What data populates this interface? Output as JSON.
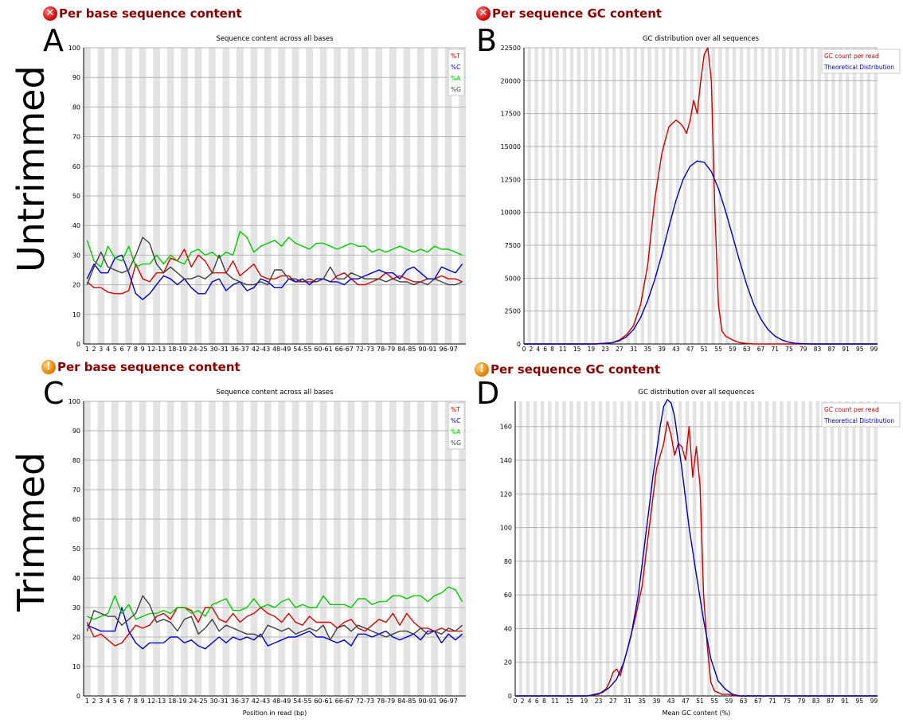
{
  "rows": [
    "Untrimmed",
    "Trimmed"
  ],
  "panels": [
    {
      "letter": "A",
      "heading": "Per base sequence content",
      "status": "fail",
      "chart_title": "Sequence content across all bases",
      "xlabel": ""
    },
    {
      "letter": "B",
      "heading": "Per sequence GC content",
      "status": "fail",
      "chart_title": "GC distribution over all sequences",
      "xlabel": ""
    },
    {
      "letter": "C",
      "heading": "Per base sequence content",
      "status": "warn",
      "chart_title": "Sequence content across all bases",
      "xlabel": "Position in read (bp)"
    },
    {
      "letter": "D",
      "heading": "Per sequence GC content",
      "status": "warn",
      "chart_title": "GC distribution over all sequences",
      "xlabel": "Mean GC content (%)"
    }
  ],
  "colors": {
    "T": "#dd0000",
    "C": "#0000cc",
    "A": "#00cc00",
    "G": "#404040",
    "gc": "#cc0000",
    "theory": "#0000bb",
    "heading": "#8b0000"
  },
  "chart_data": [
    {
      "id": "A",
      "type": "line",
      "title": "Sequence content across all bases",
      "xlabel": "",
      "ylim": [
        0,
        100
      ],
      "yticks": [
        0,
        10,
        20,
        30,
        40,
        50,
        60,
        70,
        80,
        90,
        100
      ],
      "categories": [
        "1",
        "2",
        "3",
        "4",
        "5",
        "6",
        "7",
        "8",
        "9",
        "10-11",
        "12-13",
        "14-15",
        "16-17",
        "18-19",
        "20-21",
        "22-23",
        "24-25",
        "26-27",
        "28-29",
        "30-31",
        "32-33",
        "34-35",
        "36-37",
        "38-39",
        "40-41",
        "42-43",
        "44-45",
        "46-47",
        "48-49",
        "50-51",
        "52-53",
        "54-55",
        "56-57",
        "58-59",
        "60-61",
        "62-63",
        "64-65",
        "66-67",
        "68-69",
        "70-71",
        "72-73",
        "74-75",
        "76-77",
        "78-79",
        "80-81",
        "82-83",
        "84-85",
        "86-87",
        "88-89",
        "90-91",
        "92-93",
        "94-95",
        "96-97",
        "98-99",
        "100"
      ],
      "tick_labels": [
        "1",
        "2",
        "3",
        "4",
        "5",
        "6",
        "7",
        "8",
        "9",
        "12-13",
        "18-19",
        "24-25",
        "30-31",
        "36-37",
        "42-43",
        "48-49",
        "54-55",
        "60-61",
        "66-67",
        "72-73",
        "78-79",
        "84-85",
        "90-91",
        "96-97"
      ],
      "legend": [
        "%T",
        "%C",
        "%A",
        "%G"
      ],
      "series": [
        {
          "name": "%T",
          "color": "#dd0000",
          "values": [
            21,
            19,
            19,
            17.5,
            17,
            17,
            18,
            27,
            22,
            21,
            24,
            24,
            29,
            28,
            32,
            26,
            30,
            28,
            24,
            24,
            24,
            28,
            23,
            25,
            27,
            23,
            22,
            22,
            23,
            23,
            21,
            21,
            21,
            21,
            22,
            21,
            23,
            24,
            22,
            20,
            20,
            21,
            22,
            24,
            22,
            23,
            22,
            21,
            21,
            22,
            22,
            23,
            22,
            22,
            21
          ]
        },
        {
          "name": "%C",
          "color": "#0000cc",
          "values": [
            22,
            27,
            24,
            24,
            29,
            30,
            24,
            17,
            15,
            17,
            20,
            23,
            22,
            20,
            22,
            19,
            17,
            17,
            21,
            22,
            18,
            20,
            21,
            18,
            19,
            22,
            21,
            19,
            19,
            22,
            21,
            22,
            20,
            22,
            22,
            21,
            21,
            20,
            22,
            22,
            23,
            24,
            25,
            24,
            24,
            22,
            25,
            26,
            24,
            22,
            22,
            26,
            25,
            24,
            27
          ]
        },
        {
          "name": "%A",
          "color": "#00cc00",
          "values": [
            35,
            28,
            26,
            33,
            29,
            28,
            33,
            26,
            27,
            27,
            30,
            27,
            30,
            28,
            27,
            31,
            32,
            30,
            31,
            29,
            31,
            30,
            38,
            36,
            31,
            33,
            34,
            35,
            33,
            36,
            34,
            33,
            32,
            34,
            34,
            33,
            32,
            33,
            34,
            33,
            33,
            31,
            32,
            31,
            32,
            33,
            32,
            31,
            32,
            31,
            33,
            32,
            32,
            31,
            30
          ]
        },
        {
          "name": "%G",
          "color": "#404040",
          "values": [
            20,
            26,
            31,
            26,
            25,
            24,
            25,
            30,
            36,
            34,
            27,
            24,
            26,
            24,
            22,
            22,
            23,
            22,
            24,
            30,
            24,
            22,
            21,
            20,
            20,
            21,
            20,
            25,
            25,
            22,
            22,
            21,
            22,
            21,
            22,
            26,
            22,
            22,
            24,
            23,
            22,
            22,
            22,
            21,
            22,
            21,
            21,
            20,
            21,
            20,
            22,
            21,
            20,
            20,
            21
          ]
        }
      ]
    },
    {
      "id": "B",
      "type": "line",
      "title": "GC distribution over all sequences",
      "xlabel": "",
      "xlim": [
        0,
        100
      ],
      "ylim": [
        0,
        22500
      ],
      "yticks": [
        0,
        2500,
        5000,
        7500,
        10000,
        12500,
        15000,
        17500,
        20000,
        22500
      ],
      "xticks": [
        0,
        2,
        4,
        6,
        8,
        11,
        15,
        19,
        23,
        27,
        31,
        35,
        39,
        43,
        47,
        51,
        55,
        59,
        63,
        67,
        71,
        75,
        79,
        83,
        87,
        91,
        95,
        99
      ],
      "legend": [
        "GC count per read",
        "Theoretical Distribution"
      ],
      "series": [
        {
          "name": "GC count per read",
          "color": "#cc0000",
          "x": [
            0,
            20,
            25,
            27,
            29,
            31,
            33,
            35,
            37,
            39,
            41,
            43,
            44,
            45,
            46,
            47,
            48,
            49,
            50,
            51,
            52,
            53,
            54,
            55,
            56,
            57,
            59,
            61,
            63,
            65,
            100
          ],
          "values": [
            0,
            0,
            100,
            300,
            700,
            1400,
            3000,
            6000,
            11000,
            14500,
            16500,
            17000,
            16800,
            16500,
            16000,
            17000,
            18500,
            17500,
            20000,
            22000,
            22500,
            20000,
            10000,
            3000,
            1000,
            600,
            300,
            100,
            40,
            0,
            0
          ]
        },
        {
          "name": "Theoretical Distribution",
          "color": "#0000bb",
          "x": [
            0,
            20,
            23,
            25,
            27,
            29,
            31,
            33,
            35,
            37,
            39,
            41,
            43,
            45,
            47,
            49,
            51,
            53,
            55,
            57,
            59,
            61,
            63,
            65,
            67,
            69,
            71,
            73,
            75,
            77,
            79,
            81,
            100
          ],
          "values": [
            0,
            0,
            30,
            100,
            250,
            550,
            1100,
            2000,
            3300,
            4900,
            6800,
            8900,
            10900,
            12500,
            13500,
            13900,
            13800,
            13100,
            11800,
            10100,
            8200,
            6300,
            4500,
            3000,
            1900,
            1100,
            600,
            300,
            130,
            50,
            20,
            0,
            0
          ]
        }
      ]
    },
    {
      "id": "C",
      "type": "line",
      "title": "Sequence content across all bases",
      "xlabel": "Position in read (bp)",
      "ylim": [
        0,
        100
      ],
      "yticks": [
        0,
        10,
        20,
        30,
        40,
        50,
        60,
        70,
        80,
        90,
        100
      ],
      "categories": [
        "1",
        "2",
        "3",
        "4",
        "5",
        "6",
        "7",
        "8",
        "9",
        "10-11",
        "12-13",
        "14-15",
        "16-17",
        "18-19",
        "20-21",
        "22-23",
        "24-25",
        "26-27",
        "28-29",
        "30-31",
        "32-33",
        "34-35",
        "36-37",
        "38-39",
        "40-41",
        "42-43",
        "44-45",
        "46-47",
        "48-49",
        "50-51",
        "52-53",
        "54-55",
        "56-57",
        "58-59",
        "60-61",
        "62-63",
        "64-65",
        "66-67",
        "68-69",
        "70-71",
        "72-73",
        "74-75",
        "76-77",
        "78-79",
        "80-81",
        "82-83",
        "84-85",
        "86-87",
        "88-89",
        "90-91",
        "92-93",
        "94-95",
        "96-97",
        "98-99",
        "100"
      ],
      "tick_labels": [
        "1",
        "2",
        "3",
        "4",
        "5",
        "6",
        "7",
        "8",
        "9",
        "12-13",
        "18-19",
        "24-25",
        "30-31",
        "36-37",
        "42-43",
        "48-49",
        "54-55",
        "60-61",
        "66-67",
        "72-73",
        "78-79",
        "84-85",
        "90-91",
        "96-97"
      ],
      "legend": [
        "%T",
        "%C",
        "%A",
        "%G"
      ],
      "series": [
        {
          "name": "%T",
          "color": "#dd0000",
          "values": [
            25,
            20,
            21,
            19,
            17,
            18,
            21,
            24,
            23,
            24,
            27,
            28,
            26,
            30,
            30,
            29,
            25,
            30,
            30,
            26,
            25,
            28,
            25,
            27,
            28,
            30,
            28,
            27,
            25,
            28,
            25,
            24,
            27,
            25,
            25,
            25,
            23,
            25,
            26,
            23,
            22,
            24,
            26,
            25,
            28,
            24,
            28,
            25,
            23,
            23,
            22,
            23,
            22,
            22,
            22
          ]
        },
        {
          "name": "%C",
          "color": "#0000cc",
          "values": [
            24,
            23,
            22,
            22,
            22,
            30,
            22,
            18,
            16,
            18,
            18,
            18,
            20,
            20,
            18,
            19,
            17,
            16,
            18,
            20,
            18,
            20,
            19,
            20,
            19,
            21,
            17,
            18,
            19,
            20,
            20,
            21,
            22,
            20,
            20,
            19,
            18,
            19,
            17,
            21,
            21,
            20,
            21,
            22,
            20,
            19,
            20,
            21,
            19,
            22,
            22,
            18,
            21,
            19,
            21
          ]
        },
        {
          "name": "%A",
          "color": "#00cc00",
          "values": [
            27,
            26,
            27,
            28,
            34,
            28,
            31,
            26,
            27,
            28,
            28,
            29,
            28,
            30,
            30,
            28,
            29,
            27,
            31,
            32,
            33,
            29,
            29,
            30,
            33,
            30,
            31,
            30,
            32,
            33,
            30,
            31,
            30,
            30,
            34,
            31,
            31,
            31,
            30,
            33,
            33,
            31,
            32,
            32,
            34,
            34,
            33,
            34,
            34,
            32,
            34,
            35,
            37,
            36,
            32
          ]
        },
        {
          "name": "%G",
          "color": "#404040",
          "values": [
            22,
            29,
            28,
            27,
            27,
            24,
            26,
            28,
            34,
            31,
            25,
            26,
            25,
            22,
            26,
            27,
            21,
            23,
            26,
            22,
            24,
            23,
            22,
            21,
            21,
            20,
            24,
            23,
            22,
            23,
            21,
            22,
            23,
            22,
            24,
            19,
            23,
            24,
            22,
            24,
            23,
            22,
            21,
            20,
            21,
            22,
            22,
            21,
            23,
            21,
            22,
            21,
            23,
            22,
            24
          ]
        }
      ]
    },
    {
      "id": "D",
      "type": "line",
      "title": "GC distribution over all sequences",
      "xlabel": "Mean GC content (%)",
      "xlim": [
        0,
        100
      ],
      "ylim": [
        0,
        175
      ],
      "yticks": [
        0,
        20,
        40,
        60,
        80,
        100,
        120,
        140,
        160
      ],
      "xticks": [
        0,
        2,
        4,
        6,
        8,
        11,
        15,
        19,
        23,
        27,
        31,
        35,
        39,
        43,
        47,
        51,
        55,
        59,
        63,
        67,
        71,
        75,
        79,
        83,
        87,
        91,
        95,
        99
      ],
      "legend": [
        "GC count per read",
        "Theoretical Distribution"
      ],
      "series": [
        {
          "name": "GC count per read",
          "color": "#cc0000",
          "x": [
            0,
            20,
            23,
            25,
            26,
            27,
            28,
            29,
            30,
            31,
            33,
            35,
            37,
            39,
            41,
            42,
            43,
            44,
            45,
            46,
            47,
            48,
            49,
            50,
            51,
            52,
            53,
            54,
            55,
            56,
            57,
            59,
            61,
            63,
            100
          ],
          "values": [
            0,
            0,
            1,
            4,
            8,
            14,
            16,
            12,
            20,
            28,
            45,
            65,
            100,
            135,
            150,
            163,
            155,
            143,
            150,
            148,
            140,
            160,
            130,
            148,
            125,
            60,
            30,
            8,
            3,
            2,
            1,
            1,
            0,
            0,
            0
          ]
        },
        {
          "name": "Theoretical Distribution",
          "color": "#0000bb",
          "x": [
            0,
            20,
            22,
            24,
            26,
            28,
            30,
            32,
            34,
            36,
            38,
            40,
            41,
            42,
            43,
            44,
            45,
            46,
            48,
            50,
            52,
            54,
            56,
            58,
            60,
            62,
            64,
            66,
            100
          ],
          "values": [
            0,
            0,
            1,
            2,
            5,
            10,
            20,
            36,
            60,
            95,
            130,
            160,
            172,
            176,
            174,
            166,
            150,
            135,
            100,
            72,
            45,
            22,
            9,
            4,
            1,
            0,
            0,
            0,
            0
          ]
        }
      ]
    }
  ]
}
